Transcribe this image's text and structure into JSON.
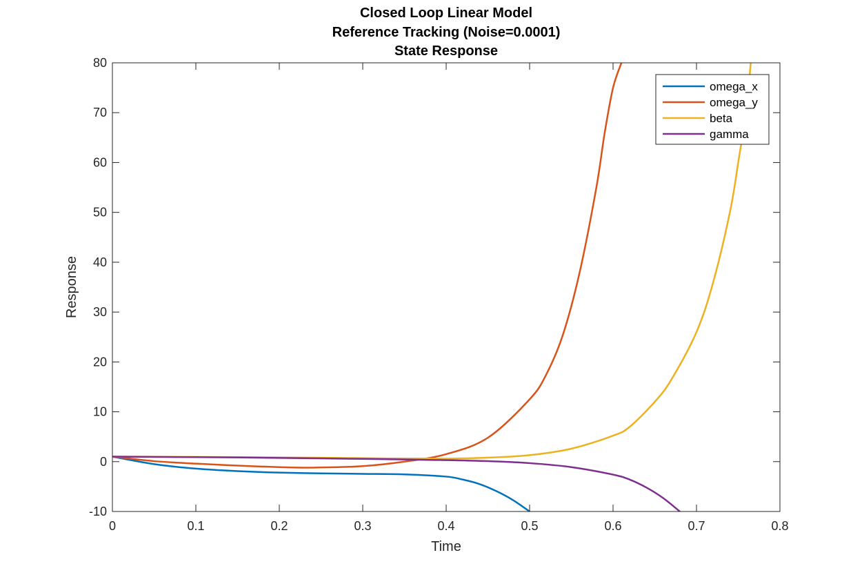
{
  "chart_data": {
    "type": "line",
    "title": [
      "Closed Loop Linear Model",
      "Reference Tracking (Noise=0.0001)",
      "State Response"
    ],
    "xlabel": "Time",
    "ylabel": "Response",
    "xlim": [
      0,
      0.8
    ],
    "ylim": [
      -10,
      80
    ],
    "xticks": [
      0,
      0.1,
      0.2,
      0.3,
      0.4,
      0.5,
      0.6,
      0.7,
      0.8
    ],
    "xtick_labels": [
      "0",
      "0.1",
      "0.2",
      "0.3",
      "0.4",
      "0.5",
      "0.6",
      "0.7",
      "0.8"
    ],
    "yticks": [
      -10,
      0,
      10,
      20,
      30,
      40,
      50,
      60,
      70,
      80
    ],
    "ytick_labels": [
      "-10",
      "0",
      "10",
      "20",
      "30",
      "40",
      "50",
      "60",
      "70",
      "80"
    ],
    "grid": false,
    "legend_position": "top-right",
    "series": [
      {
        "name": "omega_x",
        "color": "#0072BD",
        "x": [
          0,
          0.05,
          0.1,
          0.15,
          0.2,
          0.25,
          0.3,
          0.35,
          0.4,
          0.42,
          0.44,
          0.46,
          0.48,
          0.5
        ],
        "y": [
          1.0,
          -0.5,
          -1.4,
          -1.9,
          -2.2,
          -2.35,
          -2.45,
          -2.55,
          -3.0,
          -3.6,
          -4.5,
          -5.9,
          -7.7,
          -10.0
        ]
      },
      {
        "name": "omega_y",
        "color": "#D95319",
        "x": [
          0,
          0.05,
          0.1,
          0.15,
          0.2,
          0.24,
          0.3,
          0.35,
          0.4,
          0.45,
          0.5,
          0.52,
          0.54,
          0.56,
          0.58,
          0.59,
          0.6,
          0.61
        ],
        "y": [
          1.0,
          0.1,
          -0.4,
          -0.8,
          -1.1,
          -1.2,
          -0.9,
          0.0,
          1.5,
          4.8,
          12.5,
          17.5,
          25.5,
          38.0,
          55.0,
          66.0,
          75.0,
          80.0
        ]
      },
      {
        "name": "beta",
        "color": "#EDB120",
        "x": [
          0,
          0.1,
          0.2,
          0.3,
          0.4,
          0.45,
          0.5,
          0.55,
          0.6,
          0.62,
          0.65,
          0.67,
          0.7,
          0.72,
          0.74,
          0.75,
          0.76,
          0.765
        ],
        "y": [
          1.0,
          0.95,
          0.85,
          0.7,
          0.6,
          0.8,
          1.3,
          2.6,
          5.2,
          7.0,
          12.0,
          16.5,
          26.0,
          36.0,
          50.0,
          60.0,
          71.0,
          80.0
        ]
      },
      {
        "name": "gamma",
        "color": "#7E2F8E",
        "x": [
          0,
          0.1,
          0.2,
          0.3,
          0.4,
          0.45,
          0.5,
          0.55,
          0.6,
          0.62,
          0.64,
          0.66,
          0.68
        ],
        "y": [
          1.0,
          0.9,
          0.75,
          0.55,
          0.3,
          0.1,
          -0.3,
          -1.1,
          -2.6,
          -3.6,
          -5.2,
          -7.3,
          -10.0
        ]
      }
    ]
  }
}
